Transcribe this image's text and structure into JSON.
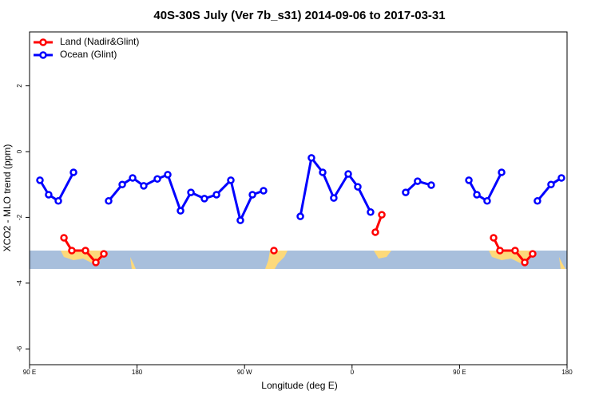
{
  "chart_data": {
    "type": "line",
    "title": "40S-30S July (Ver 7b_s31)   2014-09-06 to 2017-03-31",
    "x_label": "Longitude (deg E)",
    "y_label": "XCO2 - MLO trend (ppm)",
    "xlim": [
      90,
      540
    ],
    "ylim": [
      -6.48,
      3.64
    ],
    "xticks": [
      {
        "value": 90,
        "label": "90 E"
      },
      180,
      {
        "value": 270,
        "label": "90 W"
      },
      {
        "value": 360,
        "label": "0"
      },
      {
        "value": 450,
        "label": "90 E"
      },
      {
        "value": 540,
        "label": "180"
      }
    ],
    "yticks": [
      2,
      0,
      -2,
      -4,
      -6
    ],
    "legend": "top-left",
    "series": [
      {
        "name": "Land (Nadir&Glint)",
        "color": "#ff0000",
        "x": [
          118.8,
          125.4,
          136.8,
          145.5,
          152.2,
          null,
          294.6,
          null,
          379.5,
          384.9,
          null,
          478.5,
          483.8,
          496.5,
          504.6,
          511.2
        ],
        "values": [
          -2.62,
          -3.01,
          -3.01,
          -3.37,
          -3.11,
          null,
          -3.01,
          null,
          -2.45,
          -1.92,
          null,
          -2.62,
          -3.01,
          -3.01,
          -3.37,
          -3.11
        ]
      },
      {
        "name": "Ocean (Glint)",
        "color": "#0000ff",
        "x": [
          98.7,
          106.0,
          114.1,
          126.8,
          null,
          156.2,
          167.6,
          176.3,
          185.6,
          197.0,
          205.7,
          216.4,
          225.1,
          236.4,
          246.5,
          258.5,
          266.5,
          276.6,
          285.9,
          null,
          316.7,
          326.0,
          335.4,
          344.7,
          356.8,
          364.8,
          375.5,
          null,
          404.9,
          414.9,
          426.3,
          null,
          457.8,
          464.5,
          473.1,
          485.2,
          null,
          515.2,
          526.6,
          535.3
        ],
        "values": [
          -0.87,
          -1.31,
          -1.5,
          -0.63,
          null,
          -1.5,
          -1.0,
          -0.8,
          -1.04,
          -0.83,
          -0.7,
          -1.8,
          -1.24,
          -1.43,
          -1.31,
          -0.87,
          -2.09,
          -1.31,
          -1.19,
          null,
          -1.97,
          -0.19,
          -0.63,
          -1.41,
          -0.68,
          -1.07,
          -1.84,
          null,
          -1.24,
          -0.9,
          -1.02,
          null,
          -0.87,
          -1.31,
          -1.5,
          -0.63,
          null,
          -1.5,
          -1.0,
          -0.8
        ]
      }
    ]
  }
}
